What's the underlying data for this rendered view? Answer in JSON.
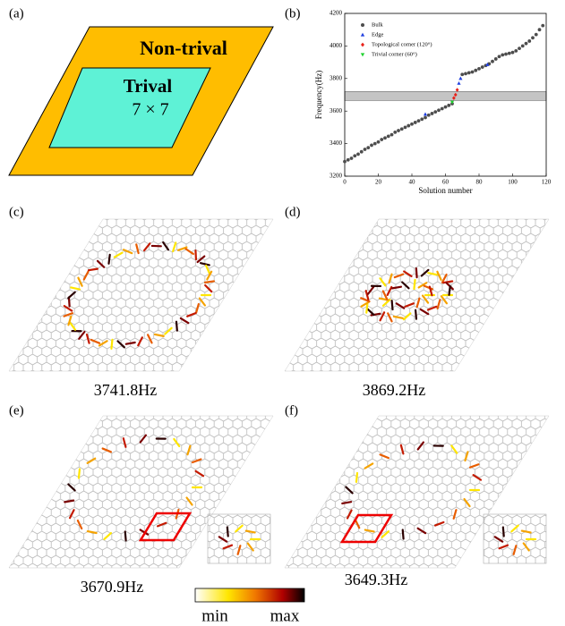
{
  "panels": {
    "a": {
      "label": "(a)",
      "outer": "Non-trival",
      "inner": "Trival",
      "size": "7 × 7"
    },
    "b": {
      "label": "(b)"
    },
    "c": {
      "label": "(c)",
      "caption": "3741.8Hz"
    },
    "d": {
      "label": "(d)",
      "caption": "3869.2Hz"
    },
    "e": {
      "label": "(e)",
      "caption": "3670.9Hz"
    },
    "f": {
      "label": "(f)",
      "caption": "3649.3Hz"
    }
  },
  "colorbar": {
    "min": "min",
    "max": "max"
  },
  "chart_data": {
    "type": "scatter",
    "xlabel": "Solution number",
    "ylabel": "Frequency(Hz)",
    "xlim": [
      0,
      120
    ],
    "xticks": [
      0,
      20,
      40,
      60,
      80,
      100,
      120
    ],
    "ylim": [
      3200,
      4200
    ],
    "yticks": [
      3200,
      3400,
      3600,
      3800,
      4000,
      4200
    ],
    "band": [
      3665,
      3720
    ],
    "band_color": "#c4c4c4",
    "legend": "upper left",
    "series": [
      {
        "name": "Bulk",
        "color": "#4d4d4d",
        "marker": "circle",
        "x": [
          0,
          2,
          4,
          6,
          8,
          10,
          12,
          14,
          16,
          18,
          20,
          22,
          24,
          26,
          28,
          30,
          32,
          34,
          36,
          38,
          40,
          42,
          44,
          46,
          48,
          50,
          52,
          54,
          56,
          58,
          60,
          62,
          64,
          70,
          72,
          74,
          76,
          78,
          80,
          82,
          84,
          86,
          88,
          90,
          92,
          94,
          96,
          98,
          100,
          102,
          104,
          106,
          108,
          110,
          112,
          114,
          116,
          118
        ],
        "values": [
          3290,
          3300,
          3310,
          3325,
          3335,
          3350,
          3365,
          3375,
          3390,
          3400,
          3410,
          3425,
          3435,
          3445,
          3455,
          3470,
          3480,
          3490,
          3500,
          3510,
          3520,
          3530,
          3540,
          3550,
          3560,
          3575,
          3585,
          3595,
          3605,
          3615,
          3625,
          3635,
          3645,
          3825,
          3830,
          3835,
          3840,
          3850,
          3860,
          3870,
          3880,
          3890,
          3905,
          3920,
          3935,
          3945,
          3950,
          3955,
          3960,
          3970,
          3985,
          4000,
          4015,
          4030,
          4050,
          4070,
          4100,
          4125
        ]
      },
      {
        "name": "Edge",
        "color": "#1f3fe0",
        "marker": "triangle-up",
        "x": [
          48,
          68,
          69,
          85
        ],
        "values": [
          3580,
          3770,
          3800,
          3885
        ]
      },
      {
        "name": "Topological corner (120°)",
        "color": "#e8221a",
        "marker": "diamond",
        "x": [
          65,
          66,
          67
        ],
        "values": [
          3680,
          3700,
          3730
        ]
      },
      {
        "name": "Trivial corner (60°)",
        "color": "#1fd12f",
        "marker": "triangle-down",
        "x": [
          64
        ],
        "values": [
          3655
        ]
      }
    ]
  }
}
